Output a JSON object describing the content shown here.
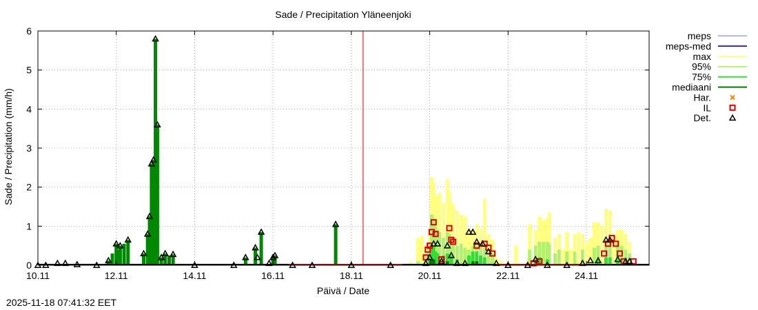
{
  "chart_data": {
    "type": "bar",
    "title": "Sade / Precipitation  Yläneenjoki",
    "xlabel": "Päivä / Date",
    "ylabel": "Sade / Precipitation (mm/h)",
    "ylim": [
      0,
      6
    ],
    "xlim_days": [
      10.0,
      25.6
    ],
    "yticks": [
      "0",
      "1",
      "2",
      "3",
      "4",
      "5",
      "6"
    ],
    "xticks": [
      {
        "day": 10,
        "label": "10.11"
      },
      {
        "day": 12,
        "label": "12.11"
      },
      {
        "day": 14,
        "label": "14.11"
      },
      {
        "day": 16,
        "label": "16.11"
      },
      {
        "day": 18,
        "label": "18.11"
      },
      {
        "day": 20,
        "label": "20.11"
      },
      {
        "day": 22,
        "label": "22.11"
      },
      {
        "day": 24,
        "label": "24.11"
      }
    ],
    "grid": true,
    "legend_position": "right",
    "current_time_day": 18.3,
    "legend": [
      {
        "key": "meps",
        "label": "meps",
        "color": "#b4b4ff",
        "kind": "line"
      },
      {
        "key": "meps_med",
        "label": "meps-med",
        "color": "#2b2bb8",
        "kind": "line"
      },
      {
        "key": "max",
        "label": "max",
        "color": "#ffff80",
        "kind": "line"
      },
      {
        "key": "p95",
        "label": "95%",
        "color": "#b4f06e",
        "kind": "line"
      },
      {
        "key": "p75",
        "label": "75%",
        "color": "#33dd33",
        "kind": "line"
      },
      {
        "key": "median",
        "label": "mediaani",
        "color": "#007a00",
        "kind": "line"
      },
      {
        "key": "har",
        "label": "Har.",
        "color": "#ff8000",
        "kind": "x"
      },
      {
        "key": "il",
        "label": "IL",
        "color": "#dd0000",
        "kind": "square"
      },
      {
        "key": "det",
        "label": "Det.",
        "color": "#000000",
        "kind": "triangle"
      }
    ],
    "colors": {
      "observed_bar": "#008800",
      "now_line": "#cc0000",
      "grid": "#aaaaaa"
    },
    "observed": [
      {
        "day": 11.8,
        "value": 0.12
      },
      {
        "day": 11.9,
        "value": 0.3
      },
      {
        "day": 12.0,
        "value": 0.55
      },
      {
        "day": 12.05,
        "value": 0.4
      },
      {
        "day": 12.1,
        "value": 0.5
      },
      {
        "day": 12.2,
        "value": 0.55
      },
      {
        "day": 12.3,
        "value": 0.65
      },
      {
        "day": 12.7,
        "value": 0.3
      },
      {
        "day": 12.8,
        "value": 0.8
      },
      {
        "day": 12.85,
        "value": 1.25
      },
      {
        "day": 12.9,
        "value": 2.6
      },
      {
        "day": 12.95,
        "value": 2.7
      },
      {
        "day": 13.0,
        "value": 5.8
      },
      {
        "day": 13.05,
        "value": 3.6
      },
      {
        "day": 13.15,
        "value": 0.2
      },
      {
        "day": 13.25,
        "value": 0.3
      },
      {
        "day": 13.35,
        "value": 0.25
      },
      {
        "day": 13.45,
        "value": 0.28
      },
      {
        "day": 15.3,
        "value": 0.2
      },
      {
        "day": 15.55,
        "value": 0.45
      },
      {
        "day": 15.7,
        "value": 0.85
      },
      {
        "day": 16.0,
        "value": 0.2
      },
      {
        "day": 16.05,
        "value": 0.25
      },
      {
        "day": 17.6,
        "value": 1.05
      }
    ],
    "det": [
      {
        "day": 10.0,
        "value": 0.0
      },
      {
        "day": 10.2,
        "value": 0.0
      },
      {
        "day": 10.5,
        "value": 0.05
      },
      {
        "day": 10.7,
        "value": 0.05
      },
      {
        "day": 11.0,
        "value": 0.02
      },
      {
        "day": 11.5,
        "value": 0.0
      },
      {
        "day": 11.8,
        "value": 0.12
      },
      {
        "day": 12.0,
        "value": 0.55
      },
      {
        "day": 12.1,
        "value": 0.5
      },
      {
        "day": 12.3,
        "value": 0.65
      },
      {
        "day": 12.7,
        "value": 0.3
      },
      {
        "day": 12.8,
        "value": 0.8
      },
      {
        "day": 12.85,
        "value": 1.25
      },
      {
        "day": 12.9,
        "value": 2.6
      },
      {
        "day": 12.95,
        "value": 2.7
      },
      {
        "day": 13.0,
        "value": 5.8
      },
      {
        "day": 13.05,
        "value": 3.6
      },
      {
        "day": 13.15,
        "value": 0.2
      },
      {
        "day": 13.25,
        "value": 0.3
      },
      {
        "day": 13.45,
        "value": 0.28
      },
      {
        "day": 14.0,
        "value": 0.0
      },
      {
        "day": 15.0,
        "value": 0.0
      },
      {
        "day": 15.3,
        "value": 0.2
      },
      {
        "day": 15.55,
        "value": 0.45
      },
      {
        "day": 15.6,
        "value": 0.2
      },
      {
        "day": 15.7,
        "value": 0.85
      },
      {
        "day": 15.9,
        "value": 0.05
      },
      {
        "day": 16.0,
        "value": 0.2
      },
      {
        "day": 16.05,
        "value": 0.25
      },
      {
        "day": 16.5,
        "value": 0.0
      },
      {
        "day": 17.0,
        "value": 0.0
      },
      {
        "day": 17.6,
        "value": 1.05
      },
      {
        "day": 18.0,
        "value": 0.0
      },
      {
        "day": 19.0,
        "value": 0.0
      },
      {
        "day": 19.9,
        "value": 0.05
      },
      {
        "day": 20.0,
        "value": 0.2
      },
      {
        "day": 20.1,
        "value": 0.55
      },
      {
        "day": 20.2,
        "value": 0.55
      },
      {
        "day": 20.3,
        "value": 0.1
      },
      {
        "day": 20.45,
        "value": 0.5
      },
      {
        "day": 20.55,
        "value": 0.25
      },
      {
        "day": 20.7,
        "value": 0.05
      },
      {
        "day": 20.9,
        "value": 0.05
      },
      {
        "day": 21.0,
        "value": 0.85
      },
      {
        "day": 21.1,
        "value": 0.85
      },
      {
        "day": 21.2,
        "value": 0.6
      },
      {
        "day": 21.35,
        "value": 0.55
      },
      {
        "day": 21.5,
        "value": 0.35
      },
      {
        "day": 21.7,
        "value": 0.05
      },
      {
        "day": 22.0,
        "value": 0.0
      },
      {
        "day": 22.5,
        "value": 0.0
      },
      {
        "day": 22.7,
        "value": 0.15
      },
      {
        "day": 23.0,
        "value": 0.0
      },
      {
        "day": 23.5,
        "value": 0.0
      },
      {
        "day": 23.9,
        "value": 0.05
      },
      {
        "day": 24.1,
        "value": 0.12
      },
      {
        "day": 24.3,
        "value": 0.12
      },
      {
        "day": 24.5,
        "value": 0.65
      },
      {
        "day": 24.6,
        "value": 0.65
      },
      {
        "day": 24.8,
        "value": 0.15
      },
      {
        "day": 25.0,
        "value": 0.1
      },
      {
        "day": 25.1,
        "value": 0.1
      }
    ],
    "il": [
      {
        "day": 20.1,
        "value": 1.1
      },
      {
        "day": 20.05,
        "value": 0.85
      },
      {
        "day": 20.15,
        "value": 0.8
      },
      {
        "day": 20.5,
        "value": 0.95
      },
      {
        "day": 20.55,
        "value": 0.65
      },
      {
        "day": 20.3,
        "value": 0.15
      },
      {
        "day": 20.6,
        "value": 0.6
      },
      {
        "day": 19.9,
        "value": 0.2
      },
      {
        "day": 19.95,
        "value": 0.4
      },
      {
        "day": 20.0,
        "value": 0.5
      },
      {
        "day": 21.2,
        "value": 0.5
      },
      {
        "day": 21.4,
        "value": 0.55
      },
      {
        "day": 21.5,
        "value": 0.45
      },
      {
        "day": 21.6,
        "value": 0.3
      },
      {
        "day": 22.65,
        "value": 0.05
      },
      {
        "day": 22.8,
        "value": 0.1
      },
      {
        "day": 24.45,
        "value": 0.3
      },
      {
        "day": 24.55,
        "value": 0.55
      },
      {
        "day": 24.65,
        "value": 0.7
      },
      {
        "day": 24.75,
        "value": 0.55
      },
      {
        "day": 24.85,
        "value": 0.3
      },
      {
        "day": 24.95,
        "value": 0.1
      },
      {
        "day": 25.2,
        "value": 0.1
      }
    ],
    "max": [
      {
        "day": 19.5,
        "value": 0.1
      },
      {
        "day": 19.7,
        "value": 0.7
      },
      {
        "day": 19.8,
        "value": 0.75
      },
      {
        "day": 19.9,
        "value": 0.5
      },
      {
        "day": 20.0,
        "value": 0.95
      },
      {
        "day": 20.05,
        "value": 2.25
      },
      {
        "day": 20.1,
        "value": 2.1
      },
      {
        "day": 20.15,
        "value": 1.75
      },
      {
        "day": 20.2,
        "value": 1.8
      },
      {
        "day": 20.25,
        "value": 1.85
      },
      {
        "day": 20.35,
        "value": 1.6
      },
      {
        "day": 20.45,
        "value": 2.2
      },
      {
        "day": 20.5,
        "value": 1.9
      },
      {
        "day": 20.55,
        "value": 1.6
      },
      {
        "day": 20.6,
        "value": 1.55
      },
      {
        "day": 20.7,
        "value": 1.4
      },
      {
        "day": 20.8,
        "value": 1.3
      },
      {
        "day": 20.9,
        "value": 1.25
      },
      {
        "day": 21.0,
        "value": 0.9
      },
      {
        "day": 21.1,
        "value": 0.9
      },
      {
        "day": 21.2,
        "value": 1.05
      },
      {
        "day": 21.3,
        "value": 0.95
      },
      {
        "day": 21.4,
        "value": 1.7
      },
      {
        "day": 21.5,
        "value": 0.8
      },
      {
        "day": 21.6,
        "value": 0.65
      },
      {
        "day": 21.7,
        "value": 0.2
      },
      {
        "day": 21.8,
        "value": 0.1
      },
      {
        "day": 22.0,
        "value": 0.1
      },
      {
        "day": 22.2,
        "value": 0.5
      },
      {
        "day": 22.5,
        "value": 0.1
      },
      {
        "day": 22.55,
        "value": 1.05
      },
      {
        "day": 22.7,
        "value": 0.9
      },
      {
        "day": 22.8,
        "value": 1.25
      },
      {
        "day": 22.9,
        "value": 1.15
      },
      {
        "day": 23.0,
        "value": 1.2
      },
      {
        "day": 23.05,
        "value": 1.35
      },
      {
        "day": 23.2,
        "value": 0.7
      },
      {
        "day": 23.3,
        "value": 0.8
      },
      {
        "day": 23.4,
        "value": 0.4
      },
      {
        "day": 23.5,
        "value": 0.85
      },
      {
        "day": 23.6,
        "value": 0.4
      },
      {
        "day": 23.7,
        "value": 0.8
      },
      {
        "day": 23.8,
        "value": 0.85
      },
      {
        "day": 23.9,
        "value": 0.8
      },
      {
        "day": 24.0,
        "value": 0.6
      },
      {
        "day": 24.1,
        "value": 0.7
      },
      {
        "day": 24.2,
        "value": 1.1
      },
      {
        "day": 24.3,
        "value": 1.1
      },
      {
        "day": 24.4,
        "value": 1.0
      },
      {
        "day": 24.5,
        "value": 1.45
      },
      {
        "day": 24.6,
        "value": 1.4
      },
      {
        "day": 24.7,
        "value": 0.75
      },
      {
        "day": 24.8,
        "value": 0.9
      },
      {
        "day": 24.9,
        "value": 0.9
      },
      {
        "day": 25.0,
        "value": 0.8
      },
      {
        "day": 25.1,
        "value": 0.6
      }
    ],
    "p95": [
      {
        "day": 19.7,
        "value": 0.1
      },
      {
        "day": 19.9,
        "value": 0.25
      },
      {
        "day": 20.0,
        "value": 0.6
      },
      {
        "day": 20.05,
        "value": 1.3
      },
      {
        "day": 20.1,
        "value": 1.2
      },
      {
        "day": 20.15,
        "value": 1.0
      },
      {
        "day": 20.2,
        "value": 0.9
      },
      {
        "day": 20.25,
        "value": 0.85
      },
      {
        "day": 20.35,
        "value": 0.7
      },
      {
        "day": 20.45,
        "value": 0.85
      },
      {
        "day": 20.5,
        "value": 0.8
      },
      {
        "day": 20.55,
        "value": 0.7
      },
      {
        "day": 20.6,
        "value": 0.6
      },
      {
        "day": 20.7,
        "value": 0.5
      },
      {
        "day": 20.8,
        "value": 0.55
      },
      {
        "day": 20.9,
        "value": 0.45
      },
      {
        "day": 21.0,
        "value": 0.4
      },
      {
        "day": 21.1,
        "value": 0.5
      },
      {
        "day": 21.2,
        "value": 0.6
      },
      {
        "day": 21.3,
        "value": 0.5
      },
      {
        "day": 21.4,
        "value": 0.45
      },
      {
        "day": 21.5,
        "value": 0.4
      },
      {
        "day": 21.6,
        "value": 0.3
      },
      {
        "day": 22.55,
        "value": 0.4
      },
      {
        "day": 22.7,
        "value": 0.5
      },
      {
        "day": 22.8,
        "value": 0.6
      },
      {
        "day": 22.9,
        "value": 0.6
      },
      {
        "day": 23.0,
        "value": 0.6
      },
      {
        "day": 23.05,
        "value": 0.55
      },
      {
        "day": 23.2,
        "value": 0.3
      },
      {
        "day": 23.3,
        "value": 0.4
      },
      {
        "day": 23.5,
        "value": 0.35
      },
      {
        "day": 23.7,
        "value": 0.35
      },
      {
        "day": 23.9,
        "value": 0.4
      },
      {
        "day": 24.2,
        "value": 0.45
      },
      {
        "day": 24.3,
        "value": 0.5
      },
      {
        "day": 24.5,
        "value": 0.6
      },
      {
        "day": 24.6,
        "value": 0.6
      },
      {
        "day": 24.8,
        "value": 0.55
      },
      {
        "day": 24.9,
        "value": 0.5
      },
      {
        "day": 25.0,
        "value": 0.4
      },
      {
        "day": 25.1,
        "value": 0.3
      }
    ],
    "p75": [
      {
        "day": 20.0,
        "value": 0.2
      },
      {
        "day": 20.05,
        "value": 0.5
      },
      {
        "day": 20.1,
        "value": 0.5
      },
      {
        "day": 20.15,
        "value": 0.35
      },
      {
        "day": 20.2,
        "value": 0.3
      },
      {
        "day": 20.35,
        "value": 0.25
      },
      {
        "day": 20.45,
        "value": 0.3
      },
      {
        "day": 20.55,
        "value": 0.25
      },
      {
        "day": 20.7,
        "value": 0.15
      },
      {
        "day": 21.0,
        "value": 0.25
      },
      {
        "day": 21.1,
        "value": 0.35
      },
      {
        "day": 21.2,
        "value": 0.35
      },
      {
        "day": 21.3,
        "value": 0.25
      },
      {
        "day": 21.4,
        "value": 0.2
      },
      {
        "day": 22.7,
        "value": 0.15
      },
      {
        "day": 22.8,
        "value": 0.2
      },
      {
        "day": 23.0,
        "value": 0.15
      },
      {
        "day": 24.3,
        "value": 0.15
      },
      {
        "day": 24.5,
        "value": 0.2
      },
      {
        "day": 24.6,
        "value": 0.2
      },
      {
        "day": 24.8,
        "value": 0.15
      }
    ],
    "median": [
      {
        "day": 20.05,
        "value": 0.15
      },
      {
        "day": 20.1,
        "value": 0.15
      },
      {
        "day": 20.45,
        "value": 0.1
      },
      {
        "day": 21.1,
        "value": 0.1
      },
      {
        "day": 21.2,
        "value": 0.1
      }
    ]
  },
  "timestamp": "2025-11-18 07:41:32 EET"
}
